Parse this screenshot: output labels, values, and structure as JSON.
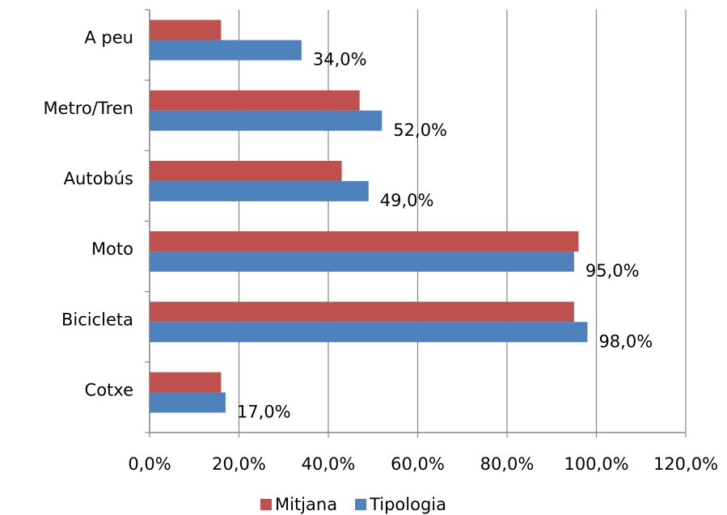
{
  "chart_data": {
    "type": "bar",
    "orientation": "horizontal",
    "categories": [
      "A peu",
      "Metro/Tren",
      "Autobús",
      "Moto",
      "Bicicleta",
      "Cotxe"
    ],
    "series": [
      {
        "name": "Mitjana",
        "color": "#c0504d",
        "values": [
          16,
          47,
          43,
          96,
          95,
          16
        ]
      },
      {
        "name": "Tipologia",
        "color": "#4f81bd",
        "values": [
          34,
          52,
          49,
          95,
          98,
          17
        ],
        "value_labels": [
          "34,0%",
          "52,0%",
          "49,0%",
          "95,0%",
          "98,0%",
          "17,0%"
        ]
      }
    ],
    "xlim": [
      0,
      120
    ],
    "xticks": [
      {
        "value": 0,
        "label": "0,0%"
      },
      {
        "value": 20,
        "label": "20,0%"
      },
      {
        "value": 40,
        "label": "40,0%"
      },
      {
        "value": 60,
        "label": "60,0%"
      },
      {
        "value": 80,
        "label": "80,0%"
      },
      {
        "value": 100,
        "label": "100,0%"
      },
      {
        "value": 120,
        "label": "120,0%"
      }
    ],
    "grid": true,
    "legend": "bottom"
  }
}
